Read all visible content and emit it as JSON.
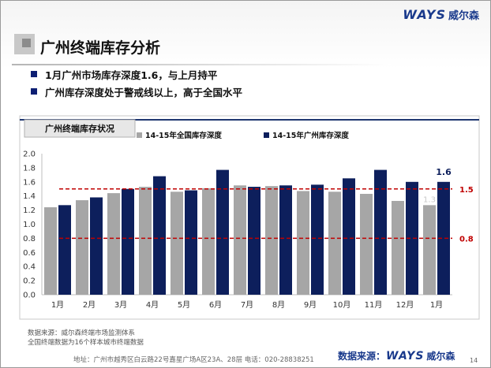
{
  "brand": {
    "logo_en": "WAYS",
    "logo_cn": "威尔森"
  },
  "page": {
    "title": "广州终端库存分析",
    "bullets": [
      "1月广州市场库存深度1.6，与上月持平",
      "广州库存深度处于警戒线以上，高于全国水平"
    ]
  },
  "chart_data": {
    "type": "bar",
    "title": "广州终端库存状况",
    "categories": [
      "1月",
      "2月",
      "3月",
      "4月",
      "5月",
      "6月",
      "7月",
      "8月",
      "9月",
      "10月",
      "11月",
      "12月",
      "1月"
    ],
    "series": [
      {
        "name": "14-15年全国库存深度",
        "color": "#a6a6a6",
        "values": [
          1.24,
          1.34,
          1.44,
          1.53,
          1.46,
          1.51,
          1.55,
          1.54,
          1.47,
          1.46,
          1.43,
          1.33,
          1.27
        ]
      },
      {
        "name": "14-15年广州库存深度",
        "color": "#0d1f5c",
        "values": [
          1.27,
          1.38,
          1.5,
          1.68,
          1.48,
          1.77,
          1.53,
          1.55,
          1.56,
          1.65,
          1.77,
          1.6,
          1.6
        ]
      }
    ],
    "data_labels": {
      "last_nation": "1.3",
      "last_guangzhou": "1.6"
    },
    "reference_lines": [
      {
        "value": 1.5,
        "label": "1.5",
        "color": "#c00000"
      },
      {
        "value": 0.8,
        "label": "0.8",
        "color": "#c00000"
      }
    ],
    "ylim": [
      0,
      2.0
    ],
    "yticks": [
      "0.0",
      "0.2",
      "0.4",
      "0.6",
      "0.8",
      "1.0",
      "1.2",
      "1.4",
      "1.6",
      "1.8",
      "2.0"
    ],
    "xlabel": "",
    "ylabel": "",
    "legend_position": "top",
    "grid": false
  },
  "footer": {
    "source_line1": "数据来源：威尔森终端市场监测体系",
    "source_line2": "全国终端数据为16个样本城市终端数据",
    "address": "地址：广州市越秀区白云路22号嘉星广场A区23A、28层   电话：020-28838251",
    "data_source_label": "数据来源：",
    "page_number": "14"
  }
}
